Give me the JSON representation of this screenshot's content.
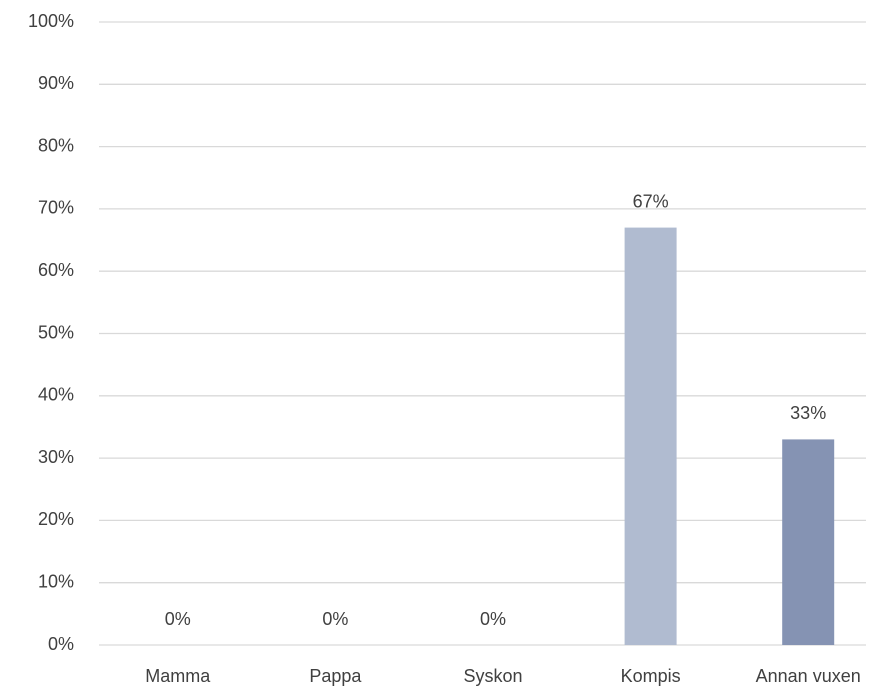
{
  "chart_data": {
    "type": "bar",
    "categories": [
      "Mamma",
      "Pappa",
      "Syskon",
      "Kompis",
      "Annan vuxen"
    ],
    "values": [
      0,
      0,
      0,
      67,
      33
    ],
    "value_labels": [
      "0%",
      "0%",
      "0%",
      "67%",
      "33%"
    ],
    "colors": [
      "#4472c4",
      "#5b6f96",
      "#6f7fa5",
      "#b0bbd0",
      "#8593b3"
    ],
    "ylim": [
      0,
      100
    ],
    "yticks": [
      {
        "value": 0,
        "label": "0%"
      },
      {
        "value": 10,
        "label": "10%"
      },
      {
        "value": 20,
        "label": "20%"
      },
      {
        "value": 30,
        "label": "30%"
      },
      {
        "value": 40,
        "label": "40%"
      },
      {
        "value": 50,
        "label": "50%"
      },
      {
        "value": 60,
        "label": "60%"
      },
      {
        "value": 70,
        "label": "70%"
      },
      {
        "value": 80,
        "label": "80%"
      },
      {
        "value": 90,
        "label": "90%"
      },
      {
        "value": 100,
        "label": "100%"
      }
    ],
    "grid": true
  }
}
